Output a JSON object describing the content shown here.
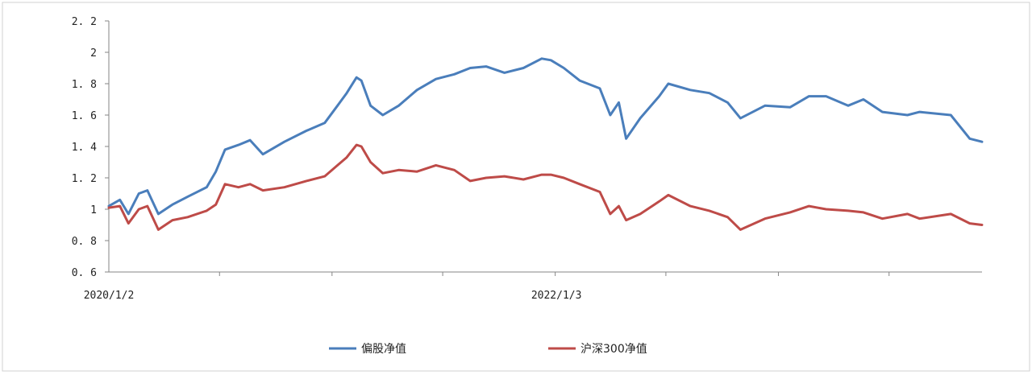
{
  "chart_data": {
    "type": "line",
    "xlabel": "",
    "ylabel": "",
    "ylim": [
      0.6,
      2.2
    ],
    "yticks": [
      0.6,
      0.8,
      1,
      1.2,
      1.4,
      1.6,
      1.8,
      2,
      2.2
    ],
    "ytick_labels": [
      "0. 6",
      "0. 8",
      "1",
      "1. 2",
      "1. 4",
      "1. 6",
      "1. 8",
      "2",
      "2. 2"
    ],
    "xtick_labels": [
      "2020/1/2",
      "2022/1/3"
    ],
    "xlim": [
      "2020/1/2",
      "2023/11/30"
    ],
    "grid": false,
    "legend_position": "bottom",
    "series": [
      {
        "name": "偏股净值",
        "color": "#4a7ebb",
        "points": [
          [
            "2020/1/2",
            1.02
          ],
          [
            "2020/1/20",
            1.06
          ],
          [
            "2020/2/3",
            0.97
          ],
          [
            "2020/2/20",
            1.1
          ],
          [
            "2020/3/5",
            1.12
          ],
          [
            "2020/3/23",
            0.97
          ],
          [
            "2020/4/15",
            1.03
          ],
          [
            "2020/5/10",
            1.08
          ],
          [
            "2020/6/10",
            1.14
          ],
          [
            "2020/6/25",
            1.24
          ],
          [
            "2020/7/10",
            1.38
          ],
          [
            "2020/8/1",
            1.41
          ],
          [
            "2020/8/20",
            1.44
          ],
          [
            "2020/9/10",
            1.35
          ],
          [
            "2020/10/15",
            1.43
          ],
          [
            "2020/11/20",
            1.5
          ],
          [
            "2020/12/20",
            1.55
          ],
          [
            "2021/1/10",
            1.66
          ],
          [
            "2021/1/25",
            1.74
          ],
          [
            "2021/2/10",
            1.84
          ],
          [
            "2021/2/18",
            1.82
          ],
          [
            "2021/3/5",
            1.66
          ],
          [
            "2021/3/25",
            1.6
          ],
          [
            "2021/4/20",
            1.66
          ],
          [
            "2021/5/20",
            1.76
          ],
          [
            "2021/6/20",
            1.83
          ],
          [
            "2021/7/20",
            1.86
          ],
          [
            "2021/8/15",
            1.9
          ],
          [
            "2021/9/10",
            1.91
          ],
          [
            "2021/10/10",
            1.87
          ],
          [
            "2021/11/10",
            1.9
          ],
          [
            "2021/12/10",
            1.96
          ],
          [
            "2021/12/25",
            1.95
          ],
          [
            "2022/1/15",
            1.9
          ],
          [
            "2022/2/10",
            1.82
          ],
          [
            "2022/3/15",
            1.77
          ],
          [
            "2022/4/1",
            1.6
          ],
          [
            "2022/4/15",
            1.68
          ],
          [
            "2022/4/27",
            1.45
          ],
          [
            "2022/5/20",
            1.58
          ],
          [
            "2022/6/20",
            1.72
          ],
          [
            "2022/7/5",
            1.8
          ],
          [
            "2022/8/10",
            1.76
          ],
          [
            "2022/9/10",
            1.74
          ],
          [
            "2022/10/10",
            1.68
          ],
          [
            "2022/10/31",
            1.58
          ],
          [
            "2022/12/10",
            1.66
          ],
          [
            "2023/1/20",
            1.65
          ],
          [
            "2023/2/20",
            1.72
          ],
          [
            "2023/3/20",
            1.72
          ],
          [
            "2023/4/25",
            1.66
          ],
          [
            "2023/5/20",
            1.7
          ],
          [
            "2023/6/20",
            1.62
          ],
          [
            "2023/7/31",
            1.6
          ],
          [
            "2023/8/20",
            1.62
          ],
          [
            "2023/10/10",
            1.6
          ],
          [
            "2023/11/10",
            1.45
          ],
          [
            "2023/11/30",
            1.43
          ]
        ]
      },
      {
        "name": "沪深300净值",
        "color": "#be4b48",
        "points": [
          [
            "2020/1/2",
            1.01
          ],
          [
            "2020/1/20",
            1.02
          ],
          [
            "2020/2/3",
            0.91
          ],
          [
            "2020/2/20",
            1.0
          ],
          [
            "2020/3/5",
            1.02
          ],
          [
            "2020/3/23",
            0.87
          ],
          [
            "2020/4/15",
            0.93
          ],
          [
            "2020/5/10",
            0.95
          ],
          [
            "2020/6/10",
            0.99
          ],
          [
            "2020/6/25",
            1.03
          ],
          [
            "2020/7/10",
            1.16
          ],
          [
            "2020/8/1",
            1.14
          ],
          [
            "2020/8/20",
            1.16
          ],
          [
            "2020/9/10",
            1.12
          ],
          [
            "2020/10/15",
            1.14
          ],
          [
            "2020/11/20",
            1.18
          ],
          [
            "2020/12/20",
            1.21
          ],
          [
            "2021/1/10",
            1.28
          ],
          [
            "2021/1/25",
            1.33
          ],
          [
            "2021/2/10",
            1.41
          ],
          [
            "2021/2/18",
            1.4
          ],
          [
            "2021/3/5",
            1.3
          ],
          [
            "2021/3/25",
            1.23
          ],
          [
            "2021/4/20",
            1.25
          ],
          [
            "2021/5/20",
            1.24
          ],
          [
            "2021/6/20",
            1.28
          ],
          [
            "2021/7/20",
            1.25
          ],
          [
            "2021/8/15",
            1.18
          ],
          [
            "2021/9/10",
            1.2
          ],
          [
            "2021/10/10",
            1.21
          ],
          [
            "2021/11/10",
            1.19
          ],
          [
            "2021/12/10",
            1.22
          ],
          [
            "2021/12/25",
            1.22
          ],
          [
            "2022/1/15",
            1.2
          ],
          [
            "2022/2/10",
            1.16
          ],
          [
            "2022/3/15",
            1.11
          ],
          [
            "2022/4/1",
            0.97
          ],
          [
            "2022/4/15",
            1.02
          ],
          [
            "2022/4/27",
            0.93
          ],
          [
            "2022/5/20",
            0.97
          ],
          [
            "2022/6/20",
            1.05
          ],
          [
            "2022/7/5",
            1.09
          ],
          [
            "2022/8/10",
            1.02
          ],
          [
            "2022/9/10",
            0.99
          ],
          [
            "2022/10/10",
            0.95
          ],
          [
            "2022/10/31",
            0.87
          ],
          [
            "2022/12/10",
            0.94
          ],
          [
            "2023/1/20",
            0.98
          ],
          [
            "2023/2/20",
            1.02
          ],
          [
            "2023/3/20",
            1.0
          ],
          [
            "2023/4/25",
            0.99
          ],
          [
            "2023/5/20",
            0.98
          ],
          [
            "2023/6/20",
            0.94
          ],
          [
            "2023/7/31",
            0.97
          ],
          [
            "2023/8/20",
            0.94
          ],
          [
            "2023/10/10",
            0.97
          ],
          [
            "2023/11/10",
            0.91
          ],
          [
            "2023/11/30",
            0.9
          ]
        ]
      }
    ]
  },
  "colors": {
    "axis": "#868686",
    "frame": "#d0d0d0",
    "text": "#222222"
  }
}
